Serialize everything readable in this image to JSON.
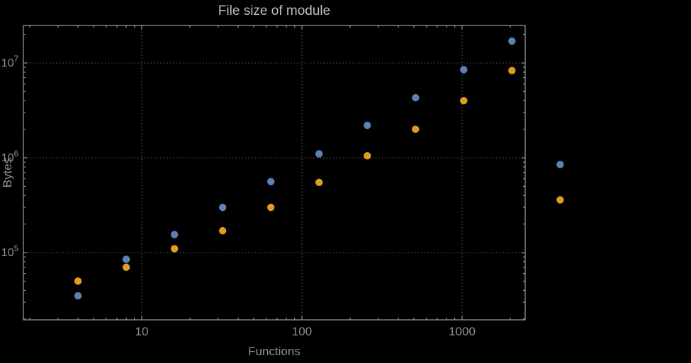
{
  "chart_data": {
    "type": "scatter",
    "title": "File size of module",
    "xlabel": "Functions",
    "ylabel": "Bytes",
    "x_scale": "log",
    "y_scale": "log",
    "x": [
      4,
      8,
      16,
      32,
      64,
      128,
      256,
      512,
      1024,
      2048,
      4096
    ],
    "series": [
      {
        "name": "blue",
        "color": "#5e81b5",
        "values": [
          35000,
          85000,
          155000,
          300000,
          560000,
          1100000,
          2200000,
          4300000,
          8500000,
          17000000,
          850000
        ]
      },
      {
        "name": "orange",
        "color": "#e19c24",
        "values": [
          50000,
          70000,
          110000,
          170000,
          300000,
          550000,
          1050000,
          2000000,
          4000000,
          8300000,
          360000
        ]
      }
    ],
    "x_ticks": {
      "values": [
        10,
        100,
        1000
      ],
      "labels": [
        "10",
        "100",
        "1000"
      ]
    },
    "y_ticks": {
      "values": [
        100000,
        1000000,
        10000000
      ],
      "labels": [
        "10^5",
        "10^6",
        "10^7"
      ]
    },
    "xlim": [
      1.8,
      2480
    ],
    "ylim": [
      21000,
      24000000
    ],
    "grid": {
      "style": "dotted",
      "color": "#5f5f5f"
    },
    "legend": "none",
    "frame_color": "#9c9c9c",
    "tick_label_color": "#8f8f8f",
    "axis_label_color": "#8f8f8f",
    "title_color": "#bdbdbd",
    "background": "#000000"
  }
}
